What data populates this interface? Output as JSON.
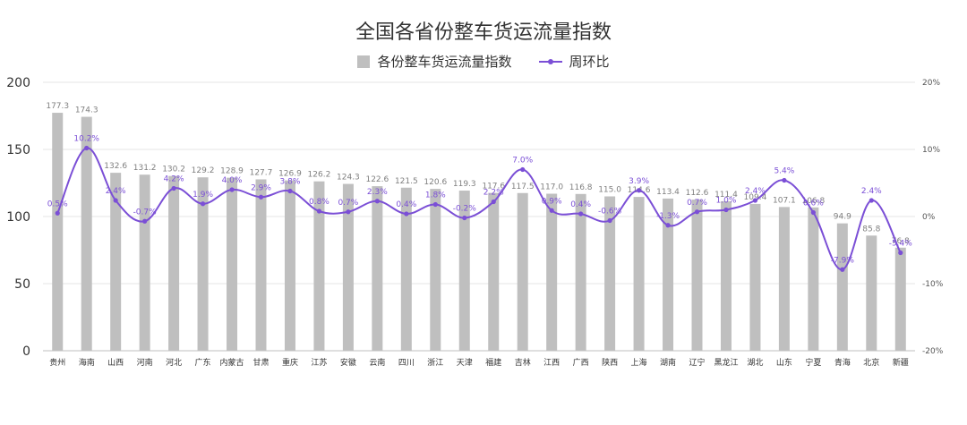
{
  "chart_data": {
    "type": "bar",
    "title": "全国各省份整车货运流量指数",
    "categories": [
      "贵州",
      "海南",
      "山西",
      "河南",
      "河北",
      "广东",
      "内蒙古",
      "甘肃",
      "重庆",
      "江苏",
      "安徽",
      "云南",
      "四川",
      "浙江",
      "天津",
      "福建",
      "吉林",
      "江西",
      "广西",
      "陕西",
      "上海",
      "湖南",
      "辽宁",
      "黑龙江",
      "湖北",
      "山东",
      "宁夏",
      "青海",
      "北京",
      "新疆"
    ],
    "series": [
      {
        "name": "各份整车货运流量指数",
        "type": "bar",
        "axis": "left",
        "color": "#bfbfbf",
        "values": [
          177.3,
          174.3,
          132.6,
          131.2,
          130.2,
          129.2,
          128.9,
          127.7,
          126.9,
          126.2,
          124.3,
          122.6,
          121.5,
          120.6,
          119.3,
          117.6,
          117.5,
          117.0,
          116.8,
          115.0,
          114.6,
          113.4,
          112.6,
          111.4,
          109.4,
          107.1,
          106.8,
          94.9,
          85.8,
          76.8
        ],
        "labels": [
          "177.3",
          "174.3",
          "132.6",
          "131.2",
          "130.2",
          "129.2",
          "128.9",
          "127.7",
          "126.9",
          "126.2",
          "124.3",
          "122.6",
          "121.5",
          "120.6",
          "119.3",
          "117.6",
          "117.5",
          "117.0",
          "116.8",
          "115.0",
          "114.6",
          "113.4",
          "112.6",
          "111.4",
          "109.4",
          "107.1",
          "106.8",
          "94.9",
          "85.8",
          "76.8"
        ]
      },
      {
        "name": "周环比",
        "type": "line",
        "axis": "right",
        "color": "#7b4fd6",
        "values": [
          0.5,
          10.2,
          2.4,
          -0.7,
          4.2,
          1.9,
          4.0,
          2.9,
          3.8,
          0.8,
          0.7,
          2.3,
          0.4,
          1.8,
          -0.2,
          2.2,
          7.0,
          0.9,
          0.4,
          -0.6,
          3.9,
          -1.3,
          0.7,
          1.0,
          2.4,
          5.4,
          0.6,
          -7.9,
          2.4,
          -5.4
        ],
        "labels": [
          "0.5%",
          "10.2%",
          "2.4%",
          "-0.7%",
          "4.2%",
          "1.9%",
          "4.0%",
          "2.9%",
          "3.8%",
          "0.8%",
          "0.7%",
          "2.3%",
          "0.4%",
          "1.8%",
          "-0.2%",
          "2.2%",
          "7.0%",
          "0.9%",
          "0.4%",
          "-0.6%",
          "3.9%",
          "-1.3%",
          "0.7%",
          "1.0%",
          "2.4%",
          "5.4%",
          "0.6%",
          "-7.9%",
          "2.4%",
          "-5.4%"
        ]
      }
    ],
    "ylim_left": [
      0,
      200
    ],
    "yticks_left": [
      "0",
      "50",
      "100",
      "150",
      "200"
    ],
    "ylim_right": [
      -20,
      20
    ],
    "yticks_right": [
      "-20%",
      "-10%",
      "0%",
      "10%",
      "20%"
    ],
    "grid": true,
    "legend_position": "top"
  }
}
